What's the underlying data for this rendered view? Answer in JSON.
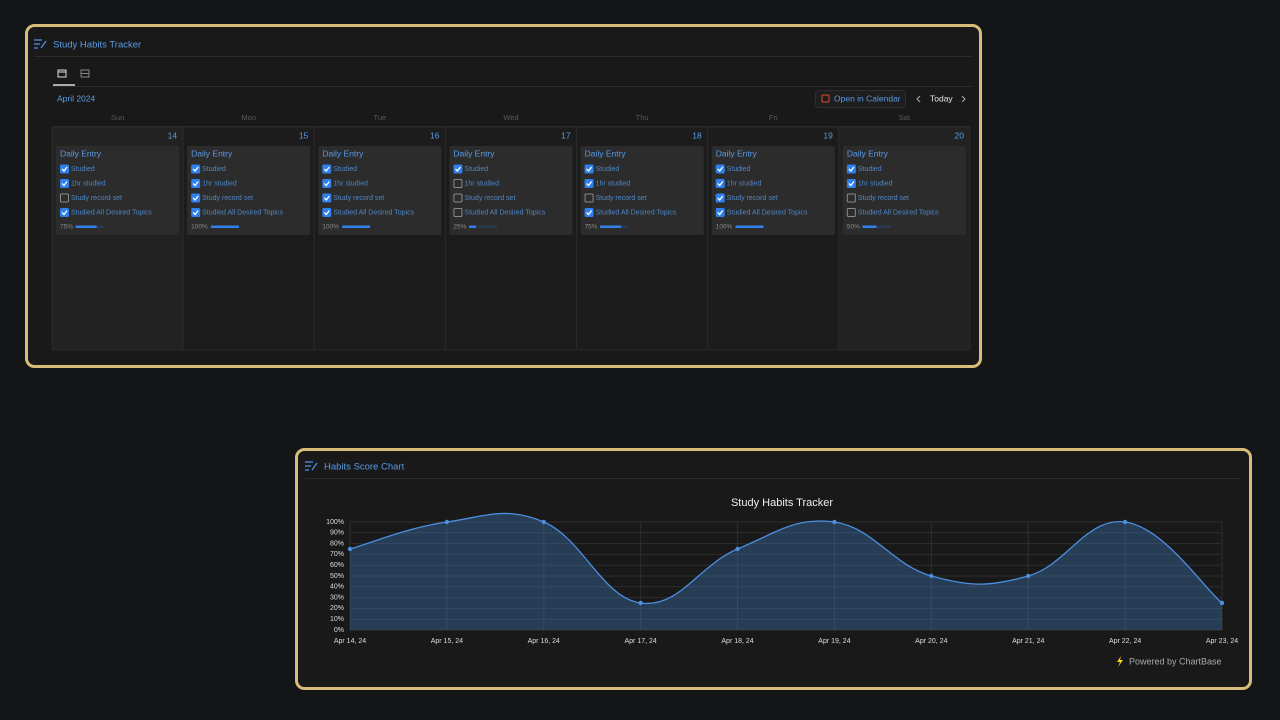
{
  "tracker": {
    "title": "Study Habits Tracker",
    "month": "April 2024",
    "open_button": "Open in Calendar",
    "today_button": "Today",
    "weekdays": [
      "Sun",
      "Mon",
      "Tue",
      "Wed",
      "Thu",
      "Fri",
      "Sat"
    ],
    "days": [
      {
        "date": 14,
        "entry": {
          "title": "Daily Entry",
          "checks": [
            {
              "label": "Studied",
              "checked": true
            },
            {
              "label": "1hr studied",
              "checked": true
            },
            {
              "label": "Study record set",
              "checked": false
            },
            {
              "label": "Studied All Desired Topics",
              "checked": true
            }
          ],
          "progress": 75,
          "progress_label": "75%"
        }
      },
      {
        "date": 15,
        "entry": {
          "title": "Daily Entry",
          "checks": [
            {
              "label": "Studied",
              "checked": true
            },
            {
              "label": "1hr studied",
              "checked": true
            },
            {
              "label": "Study record set",
              "checked": true
            },
            {
              "label": "Studied All Desired Topics",
              "checked": true
            }
          ],
          "progress": 100,
          "progress_label": "100%"
        }
      },
      {
        "date": 16,
        "entry": {
          "title": "Daily Entry",
          "checks": [
            {
              "label": "Studied",
              "checked": true
            },
            {
              "label": "1hr studied",
              "checked": true
            },
            {
              "label": "Study record set",
              "checked": true
            },
            {
              "label": "Studied All Desired Topics",
              "checked": true
            }
          ],
          "progress": 100,
          "progress_label": "100%"
        }
      },
      {
        "date": 17,
        "entry": {
          "title": "Daily Entry",
          "checks": [
            {
              "label": "Studied",
              "checked": true
            },
            {
              "label": "1hr studied",
              "checked": false
            },
            {
              "label": "Study record set",
              "checked": false
            },
            {
              "label": "Studied All Desired Topics",
              "checked": false
            }
          ],
          "progress": 25,
          "progress_label": "25%"
        }
      },
      {
        "date": 18,
        "entry": {
          "title": "Daily Entry",
          "checks": [
            {
              "label": "Studied",
              "checked": true
            },
            {
              "label": "1hr studied",
              "checked": true
            },
            {
              "label": "Study record set",
              "checked": false
            },
            {
              "label": "Studied All Desired Topics",
              "checked": true
            }
          ],
          "progress": 75,
          "progress_label": "75%"
        }
      },
      {
        "date": 19,
        "entry": {
          "title": "Daily Entry",
          "checks": [
            {
              "label": "Studied",
              "checked": true
            },
            {
              "label": "1hr studied",
              "checked": true
            },
            {
              "label": "Study record set",
              "checked": true
            },
            {
              "label": "Studied All Desired Topics",
              "checked": true
            }
          ],
          "progress": 100,
          "progress_label": "100%"
        }
      },
      {
        "date": 20,
        "entry": {
          "title": "Daily Entry",
          "checks": [
            {
              "label": "Studied",
              "checked": true
            },
            {
              "label": "1hr studied",
              "checked": true
            },
            {
              "label": "Study record set",
              "checked": false
            },
            {
              "label": "Studied All Desired Topics",
              "checked": false
            }
          ],
          "progress": 50,
          "progress_label": "50%"
        }
      }
    ]
  },
  "chart_panel": {
    "title": "Habits Score Chart",
    "footer": "Powered by ChartBase"
  },
  "chart_data": {
    "type": "area",
    "title": "Study Habits Tracker",
    "categories": [
      "Apr 14, 24",
      "Apr 15, 24",
      "Apr 16, 24",
      "Apr 17, 24",
      "Apr 18, 24",
      "Apr 19, 24",
      "Apr 20, 24",
      "Apr 21, 24",
      "Apr 22, 24",
      "Apr 23, 24"
    ],
    "values": [
      75,
      100,
      100,
      25,
      75,
      100,
      50,
      50,
      100,
      25
    ],
    "color": "#4a8fe0",
    "ylim": [
      0,
      100
    ],
    "yticks": [
      {
        "value": 0,
        "label": "0%"
      },
      {
        "value": 10,
        "label": "10%"
      },
      {
        "value": 20,
        "label": "20%"
      },
      {
        "value": 30,
        "label": "30%"
      },
      {
        "value": 40,
        "label": "40%"
      },
      {
        "value": 50,
        "label": "50%"
      },
      {
        "value": 60,
        "label": "60%"
      },
      {
        "value": 70,
        "label": "70%"
      },
      {
        "value": 80,
        "label": "80%"
      },
      {
        "value": 90,
        "label": "90%"
      },
      {
        "value": 100,
        "label": "100%"
      }
    ],
    "grid": true
  }
}
